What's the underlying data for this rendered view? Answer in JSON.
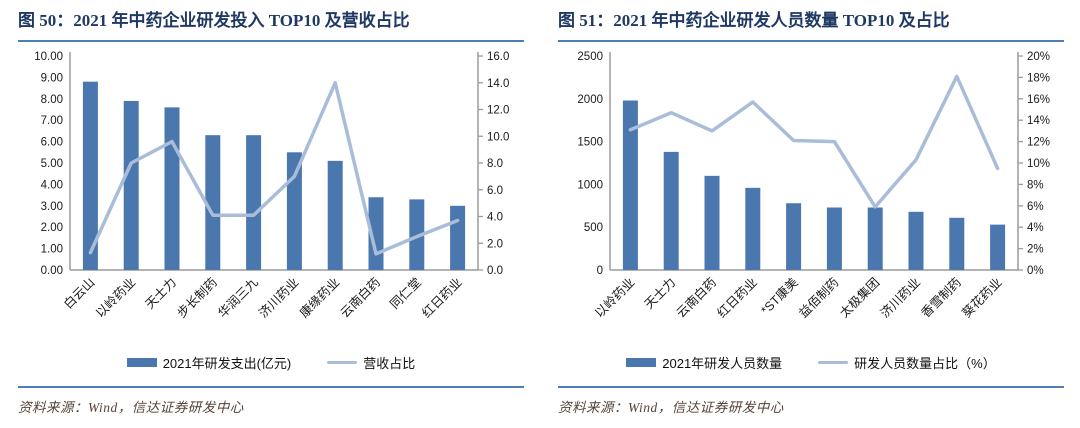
{
  "colors": {
    "bar": "#4a77ad",
    "line": "#a9bdd8",
    "axis": "#9b9b9b",
    "axis_text": "#1a1a1a",
    "title_text": "#1f3864",
    "rule_blue": "#4f7db5",
    "source_text": "#55443a"
  },
  "chart_data": [
    {
      "type": "bar+line",
      "title": "图 50：2021 年中药企业研发投入 TOP10 及营收占比",
      "categories": [
        "白云山",
        "以岭药业",
        "天士力",
        "步长制药",
        "华润三九",
        "济川药业",
        "康缘药业",
        "云南白药",
        "同仁堂",
        "红日药业"
      ],
      "series": [
        {
          "name": "2021年研发支出(亿元)",
          "type": "bar",
          "axis": "left",
          "values": [
            8.8,
            7.9,
            7.6,
            6.3,
            6.3,
            5.5,
            5.1,
            3.4,
            3.3,
            3.0
          ]
        },
        {
          "name": "营收占比",
          "type": "line",
          "axis": "right",
          "values": [
            1.3,
            8.0,
            9.6,
            4.1,
            4.1,
            7.0,
            14.0,
            1.2,
            2.5,
            3.7
          ]
        }
      ],
      "y_left": {
        "min": 0,
        "max": 10,
        "step": 1,
        "decimals": 2,
        "suffix": ""
      },
      "y_right": {
        "min": 0,
        "max": 16,
        "step": 2,
        "decimals": 1,
        "suffix": ""
      },
      "grid": false,
      "legend_position": "bottom",
      "source": "资料来源：Wind，信达证券研发中心"
    },
    {
      "type": "bar+line",
      "title": "图 51：2021 年中药企业研发人员数量 TOP10 及占比",
      "categories": [
        "以岭药业",
        "天士力",
        "云南白药",
        "红日药业",
        "*ST康美",
        "益佰制药",
        "太极集团",
        "济川药业",
        "香雪制药",
        "葵花药业"
      ],
      "series": [
        {
          "name": "2021年研发人员数量",
          "type": "bar",
          "axis": "left",
          "values": [
            1980,
            1380,
            1100,
            960,
            780,
            730,
            730,
            680,
            610,
            530
          ]
        },
        {
          "name": "研发人员数量占比（%）",
          "type": "line",
          "axis": "right",
          "values": [
            13.1,
            14.7,
            13.0,
            15.7,
            12.1,
            12.0,
            5.9,
            10.3,
            18.1,
            9.5
          ]
        }
      ],
      "y_left": {
        "min": 0,
        "max": 2500,
        "step": 500,
        "decimals": 0,
        "suffix": ""
      },
      "y_right": {
        "min": 0,
        "max": 20,
        "step": 2,
        "decimals": 0,
        "suffix": "%"
      },
      "grid": false,
      "legend_position": "bottom",
      "source": "资料来源：Wind，信达证券研发中心"
    }
  ]
}
